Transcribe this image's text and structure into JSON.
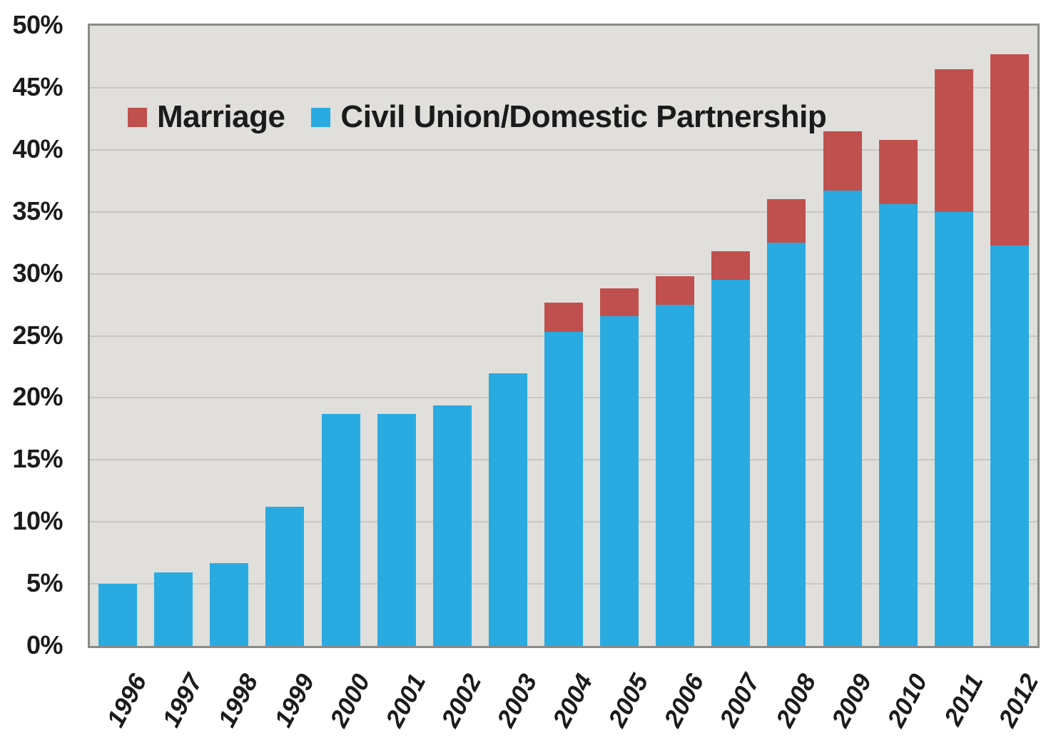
{
  "legend": {
    "items": [
      {
        "label": "Marriage",
        "color": "#c0504d"
      },
      {
        "label": "Civil Union/Domestic Partnership",
        "color": "#29abe2"
      }
    ]
  },
  "chart_data": {
    "type": "bar",
    "stacked": true,
    "title": "",
    "xlabel": "",
    "ylabel": "",
    "categories": [
      "1996",
      "1997",
      "1998",
      "1999",
      "2000",
      "2001",
      "2002",
      "2003",
      "2004",
      "2005",
      "2006",
      "2007",
      "2008",
      "2009",
      "2010",
      "2011",
      "2012"
    ],
    "series": [
      {
        "name": "Civil Union/Domestic Partnership",
        "color": "#29abe2",
        "values": [
          5.0,
          5.9,
          6.7,
          11.2,
          18.7,
          18.7,
          19.4,
          22.0,
          25.3,
          26.6,
          27.5,
          29.5,
          32.5,
          36.7,
          35.6,
          35.0,
          32.3
        ]
      },
      {
        "name": "Marriage",
        "color": "#c0504d",
        "values": [
          0,
          0,
          0,
          0,
          0,
          0,
          0,
          0,
          2.4,
          2.2,
          2.3,
          2.3,
          3.5,
          4.8,
          5.2,
          11.5,
          15.4
        ]
      }
    ],
    "totals": [
      5.0,
      5.9,
      6.7,
      11.2,
      18.7,
      18.7,
      19.4,
      22.0,
      27.7,
      28.8,
      29.8,
      31.8,
      36.0,
      41.5,
      40.8,
      46.5,
      47.7
    ],
    "ylim": [
      0,
      50
    ],
    "ytick_step": 5,
    "ytick_labels": [
      "0%",
      "5%",
      "10%",
      "15%",
      "20%",
      "25%",
      "30%",
      "35%",
      "40%",
      "45%",
      "50%"
    ],
    "grid": true,
    "legend_position": "top-left-inside",
    "plot_background": "#e0dfdc",
    "grid_color": "#c7c6c3",
    "border_color": "#8a8a88"
  }
}
